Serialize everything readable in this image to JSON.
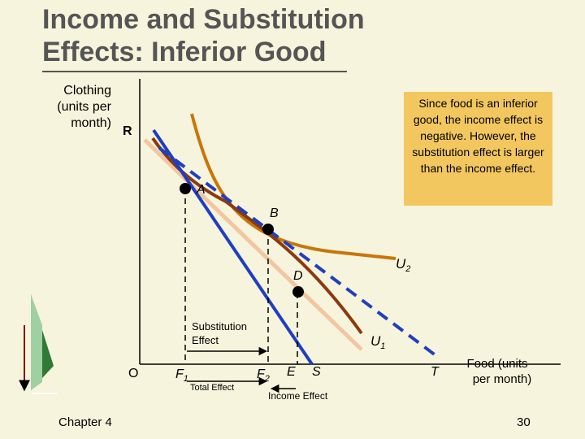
{
  "slide": {
    "title_line1": "Income and Substitution",
    "title_line2": "Effects: Inferior Good",
    "chapter": "Chapter 4",
    "page_number": "30"
  },
  "axes": {
    "y_label_line1": "Clothing",
    "y_label_line2": "(units per",
    "y_label_line3": "month)",
    "x_label_line1": "Food (units",
    "x_label_line2": "per month)",
    "origin": "O"
  },
  "points": {
    "R": "R",
    "A": "A",
    "B": "B",
    "D": "D",
    "T": "T"
  },
  "x_marks": {
    "F1": "F",
    "F1_sub": "1",
    "F2": "F",
    "F2_sub": "2",
    "E": "E",
    "S": "S"
  },
  "curves": {
    "U1": "U",
    "U1_sub": "1",
    "U2": "U",
    "U2_sub": "2"
  },
  "effects": {
    "substitution_line1": "Substitution",
    "substitution_line2": "Effect",
    "total": "Total Effect",
    "income": "Income Effect"
  },
  "note": "Since food is an inferior good, the income effect is negative.  However, the substitution effect is larger than the income effect.",
  "colors": {
    "background": "#f6f4dc",
    "budget_line": "#1f3fbf",
    "u1_curve": "#8b3a0f",
    "u2_curve": "#c8760a",
    "faded_line": "#f2c6a0",
    "note_box": "#f3c75f",
    "title_text": "#555555"
  }
}
